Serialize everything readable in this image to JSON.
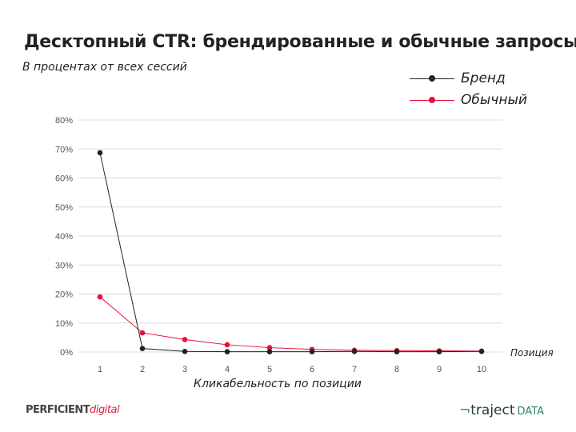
{
  "title": "Десктопный CTR: брендированные и обычные запросы",
  "subtitle": "В процентах от всех сессий",
  "logos": {
    "left_main": "PERFICIENT",
    "left_accent": "digital",
    "right_main": "traject",
    "right_accent": "DATA"
  },
  "chart_data": {
    "type": "line",
    "title": "Десктопный CTR: брендированные и обычные запросы",
    "xlabel": "Кликабельность по позиции",
    "x_axis_end_label": "Позиция",
    "ylabel": "",
    "categories": [
      "1",
      "2",
      "3",
      "4",
      "5",
      "6",
      "7",
      "8",
      "9",
      "10"
    ],
    "yticks": [
      "0%",
      "10%",
      "20%",
      "30%",
      "40%",
      "50%",
      "60%",
      "70%",
      "80%"
    ],
    "ylim": [
      0,
      80
    ],
    "grid": true,
    "legend_position": "top-right",
    "series": [
      {
        "name": "Бренд",
        "color": "#222222",
        "values": [
          68.7,
          1.2,
          0.2,
          0.1,
          0.1,
          0.1,
          0.2,
          0.1,
          0.1,
          0.2
        ]
      },
      {
        "name": "Обычный",
        "color": "#e8103a",
        "values": [
          19.0,
          6.6,
          4.3,
          2.5,
          1.5,
          0.9,
          0.6,
          0.5,
          0.4,
          0.3
        ]
      }
    ]
  }
}
